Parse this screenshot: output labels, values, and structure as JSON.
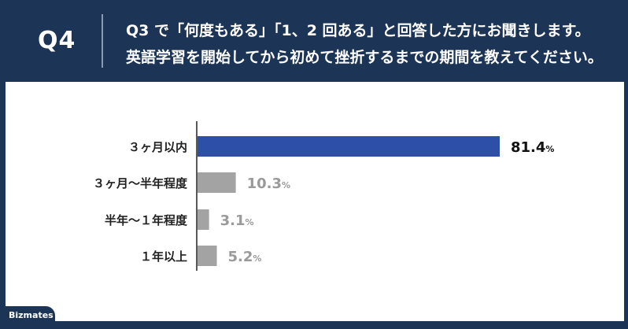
{
  "header": {
    "question_number": "Q4",
    "question_line1": "Q3 で「何度もある」「1、2 回ある」と回答した方にお聞きします。",
    "question_line2": "英語学習を開始してから初めて挫折するまでの期間を教えてください。"
  },
  "logo": {
    "text": "Bizmates"
  },
  "colors": {
    "header_bg": "#1c3557",
    "highlight_bar": "#2d4fa8",
    "other_bar": "#a3a3a3",
    "highlight_label": "#111111",
    "other_label": "#9a9a9a"
  },
  "chart_data": {
    "type": "bar",
    "orientation": "horizontal",
    "categories": [
      "３ヶ月以内",
      "３ヶ月～半年程度",
      "半年～１年程度",
      "１年以上"
    ],
    "values": [
      81.4,
      10.3,
      3.1,
      5.2
    ],
    "value_labels": [
      "81.4",
      "10.3",
      "3.1",
      "5.2"
    ],
    "unit": "%",
    "highlight_index": 0,
    "xlim": [
      0,
      100
    ],
    "grid": false,
    "legend": "none"
  }
}
